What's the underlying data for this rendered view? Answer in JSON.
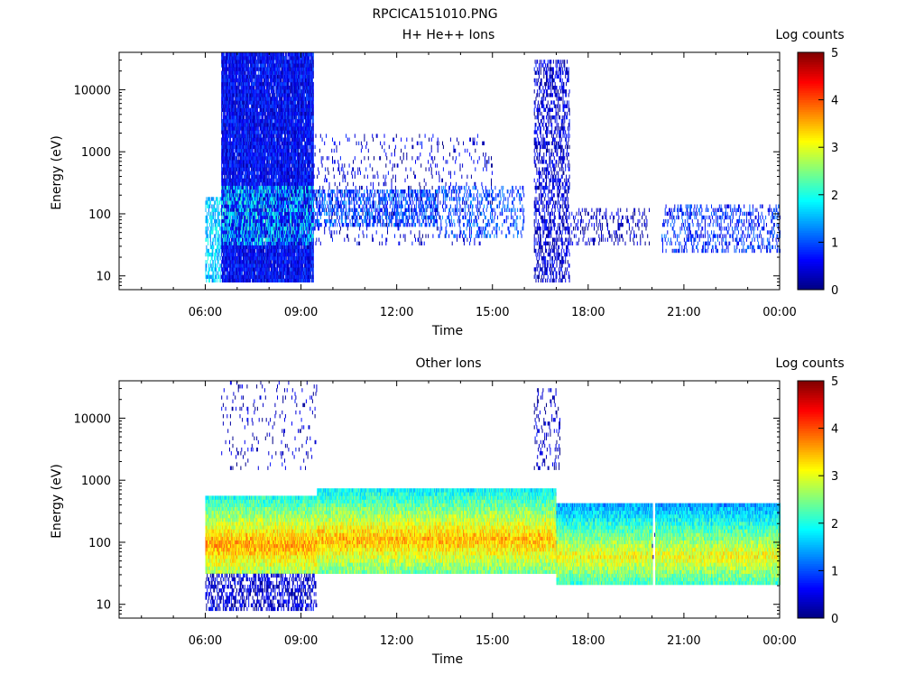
{
  "page_title": "RPCICA151010.PNG",
  "chart_data": [
    {
      "type": "heatmap",
      "title": "H+ He++ Ions",
      "xlabel": "Time",
      "ylabel": "Energy (eV)",
      "yscale": "log",
      "xlim_hours": [
        0,
        24
      ],
      "ylim": [
        6,
        40000
      ],
      "x_ticks": [
        "06:00",
        "09:00",
        "12:00",
        "15:00",
        "18:00",
        "21:00",
        "00:00"
      ],
      "y_ticks": [
        10,
        100,
        1000,
        10000
      ],
      "y_tick_labels": [
        "10",
        "100",
        "1000",
        "10000"
      ],
      "colorbar": {
        "label": "Log counts",
        "min": 0,
        "max": 5,
        "ticks": [
          "0",
          "1",
          "2",
          "3",
          "4",
          "5"
        ]
      },
      "regions": [
        {
          "t": [
            6.0,
            6.5
          ],
          "e": [
            8,
            200
          ],
          "level": 1.6,
          "density": 0.6
        },
        {
          "t": [
            6.5,
            9.4
          ],
          "e": [
            8,
            40000
          ],
          "level": 0.6,
          "density": 0.97
        },
        {
          "t": [
            6.5,
            9.4
          ],
          "e": [
            30,
            300
          ],
          "level": 1.8,
          "density": 0.35
        },
        {
          "t": [
            9.4,
            13.3
          ],
          "e": [
            60,
            250
          ],
          "level": 1.0,
          "density": 0.5
        },
        {
          "t": [
            9.4,
            15.0
          ],
          "e": [
            30,
            2000
          ],
          "level": 0.4,
          "density": 0.08
        },
        {
          "t": [
            13.3,
            16.0
          ],
          "e": [
            40,
            300
          ],
          "level": 1.0,
          "density": 0.25
        },
        {
          "t": [
            16.3,
            17.4
          ],
          "e": [
            8,
            30000
          ],
          "level": 0.4,
          "density": 0.45
        },
        {
          "t": [
            17.4,
            19.9
          ],
          "e": [
            30,
            120
          ],
          "level": 0.3,
          "density": 0.2
        },
        {
          "t": [
            20.3,
            24.0
          ],
          "e": [
            25,
            150
          ],
          "level": 0.8,
          "density": 0.3
        }
      ]
    },
    {
      "type": "heatmap",
      "title": "Other Ions",
      "xlabel": "Time",
      "ylabel": "Energy (eV)",
      "yscale": "log",
      "xlim_hours": [
        0,
        24
      ],
      "ylim": [
        6,
        40000
      ],
      "x_ticks": [
        "06:00",
        "09:00",
        "12:00",
        "15:00",
        "18:00",
        "21:00",
        "00:00"
      ],
      "y_ticks": [
        10,
        100,
        1000,
        10000
      ],
      "y_tick_labels": [
        "10",
        "100",
        "1000",
        "10000"
      ],
      "colorbar": {
        "label": "Log counts",
        "min": 0,
        "max": 5,
        "ticks": [
          "0",
          "1",
          "2",
          "3",
          "4",
          "5"
        ]
      },
      "regions": [
        {
          "t": [
            6.0,
            9.5
          ],
          "e": [
            30,
            600
          ],
          "level": 2.4,
          "peak_energy": 90,
          "density": 1.0
        },
        {
          "t": [
            6.0,
            9.5
          ],
          "e": [
            8,
            30
          ],
          "level": 0.4,
          "density": 0.5
        },
        {
          "t": [
            6.5,
            9.5
          ],
          "e": [
            1500,
            40000
          ],
          "level": 0.3,
          "density": 0.07
        },
        {
          "t": [
            9.5,
            17.0
          ],
          "e": [
            30,
            700
          ],
          "level": 2.3,
          "peak_energy": 110,
          "density": 1.0
        },
        {
          "t": [
            16.3,
            17.1
          ],
          "e": [
            1500,
            30000
          ],
          "level": 0.3,
          "density": 0.2
        },
        {
          "t": [
            17.0,
            20.0
          ],
          "e": [
            20,
            400
          ],
          "level": 1.9,
          "peak_energy": 60,
          "density": 1.0
        },
        {
          "t": [
            20.0,
            20.1
          ],
          "e": [
            20,
            300
          ],
          "level": 0.2,
          "density": 0.05
        },
        {
          "t": [
            20.1,
            24.0
          ],
          "e": [
            20,
            400
          ],
          "level": 1.9,
          "peak_energy": 60,
          "density": 1.0
        }
      ]
    }
  ]
}
